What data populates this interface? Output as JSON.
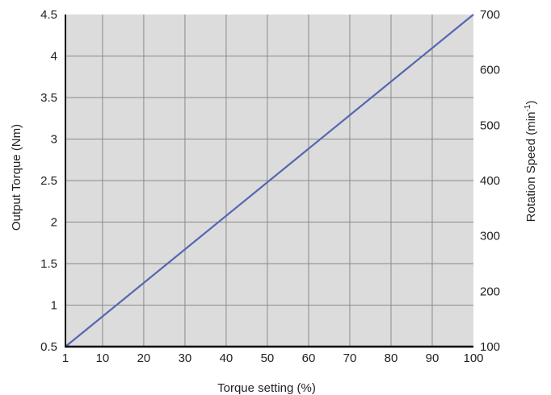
{
  "chart_data": {
    "type": "line",
    "xlabel": "Torque setting (%)",
    "ylabel": "Output Torque (Nm)",
    "y2label": {
      "prefix": "Rotation Speed (min",
      "superscript": "-1",
      "suffix": ")"
    },
    "xlim": [
      1,
      100
    ],
    "ylim": [
      0.5,
      4.5
    ],
    "y2lim": [
      100,
      700
    ],
    "x_ticks": [
      1,
      10,
      20,
      30,
      40,
      50,
      60,
      70,
      80,
      90,
      100
    ],
    "y_ticks": [
      0.5,
      1,
      1.5,
      2,
      2.5,
      3,
      3.5,
      4,
      4.5
    ],
    "y2_ticks": [
      100,
      200,
      300,
      400,
      500,
      600,
      700
    ],
    "grid": true,
    "colors": {
      "plot_background": "#dcdcdc",
      "grid": "#8a8a8a",
      "axis": "#000000",
      "line": "#5566b0"
    },
    "series": [
      {
        "x": [
          1,
          100
        ],
        "y": [
          0.5,
          4.5
        ]
      }
    ]
  }
}
